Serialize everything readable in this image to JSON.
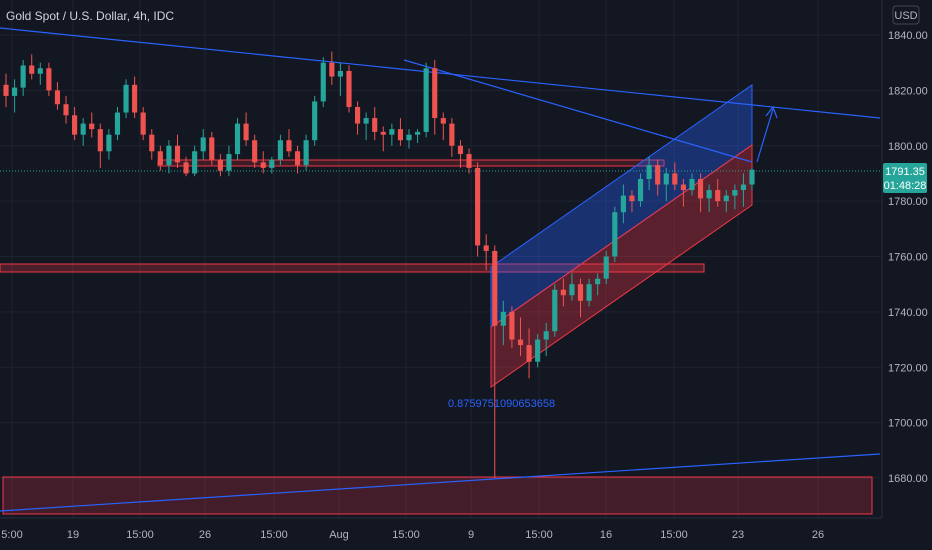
{
  "header": {
    "symbol_title": "Gold Spot / U.S. Dollar, 4h, IDC",
    "currency_button": "USD"
  },
  "colors": {
    "background": "#131722",
    "grid": "#1f2330",
    "up": "#26a69a",
    "down": "#ef5350",
    "trendline": "#2962ff",
    "channel_upper_fill": "#1e3a8a",
    "channel_lower_fill": "#7f2530",
    "zone_red": "#f23645",
    "current_price_bg": "#26a69a"
  },
  "price_axis": {
    "labels": [
      "1840.00",
      "1820.00",
      "1800.00",
      "1780.00",
      "1760.00",
      "1740.00",
      "1720.00",
      "1700.00",
      "1680.00"
    ],
    "current_price": "1791.35",
    "countdown": "01:48:28"
  },
  "time_axis": {
    "labels": [
      "5:00",
      "19",
      "15:00",
      "26",
      "15:00",
      "Aug",
      "15:00",
      "9",
      "15:00",
      "16",
      "15:00",
      "23",
      "26"
    ]
  },
  "annotations": {
    "fib_value": "0.8759751090653658"
  },
  "chart_data": {
    "type": "candlestick",
    "title": "Gold Spot / U.S. Dollar, 4h, IDC",
    "ylim": [
      1664,
      1845
    ],
    "current_price": 1791.35,
    "candles": [
      [
        1822,
        1826,
        1814,
        1818
      ],
      [
        1818,
        1824,
        1812,
        1821
      ],
      [
        1821,
        1831,
        1818,
        1829
      ],
      [
        1829,
        1833,
        1824,
        1826
      ],
      [
        1826,
        1830,
        1822,
        1828
      ],
      [
        1828,
        1830,
        1818,
        1820
      ],
      [
        1820,
        1823,
        1813,
        1815
      ],
      [
        1815,
        1818,
        1808,
        1811
      ],
      [
        1811,
        1814,
        1802,
        1804
      ],
      [
        1804,
        1810,
        1800,
        1808
      ],
      [
        1808,
        1812,
        1803,
        1806
      ],
      [
        1806,
        1808,
        1792,
        1798
      ],
      [
        1798,
        1806,
        1795,
        1804
      ],
      [
        1804,
        1814,
        1802,
        1812
      ],
      [
        1812,
        1824,
        1810,
        1822
      ],
      [
        1822,
        1825,
        1810,
        1812
      ],
      [
        1812,
        1814,
        1802,
        1804
      ],
      [
        1804,
        1806,
        1795,
        1798
      ],
      [
        1798,
        1800,
        1791,
        1793
      ],
      [
        1793,
        1802,
        1790,
        1800
      ],
      [
        1800,
        1804,
        1792,
        1794
      ],
      [
        1794,
        1796,
        1789,
        1790
      ],
      [
        1790,
        1800,
        1789,
        1798
      ],
      [
        1798,
        1806,
        1795,
        1803
      ],
      [
        1803,
        1805,
        1793,
        1795
      ],
      [
        1795,
        1797,
        1789,
        1791
      ],
      [
        1791,
        1800,
        1789,
        1797
      ],
      [
        1797,
        1810,
        1795,
        1808
      ],
      [
        1808,
        1812,
        1800,
        1802
      ],
      [
        1802,
        1804,
        1792,
        1794
      ],
      [
        1794,
        1798,
        1790,
        1792
      ],
      [
        1792,
        1796,
        1790,
        1795
      ],
      [
        1795,
        1804,
        1793,
        1802
      ],
      [
        1802,
        1806,
        1796,
        1798
      ],
      [
        1798,
        1800,
        1790,
        1793
      ],
      [
        1793,
        1804,
        1791,
        1802
      ],
      [
        1802,
        1818,
        1800,
        1816
      ],
      [
        1816,
        1832,
        1814,
        1830
      ],
      [
        1830,
        1834,
        1822,
        1825
      ],
      [
        1825,
        1830,
        1818,
        1827
      ],
      [
        1827,
        1829,
        1812,
        1814
      ],
      [
        1814,
        1816,
        1804,
        1808
      ],
      [
        1808,
        1812,
        1802,
        1810
      ],
      [
        1810,
        1814,
        1802,
        1805
      ],
      [
        1805,
        1807,
        1798,
        1804
      ],
      [
        1804,
        1808,
        1800,
        1806
      ],
      [
        1806,
        1810,
        1800,
        1802
      ],
      [
        1802,
        1806,
        1799,
        1804
      ],
      [
        1804,
        1806,
        1801,
        1805
      ],
      [
        1805,
        1830,
        1803,
        1828
      ],
      [
        1828,
        1831,
        1804,
        1810
      ],
      [
        1810,
        1812,
        1802,
        1808
      ],
      [
        1808,
        1810,
        1796,
        1800
      ],
      [
        1800,
        1802,
        1792,
        1797
      ],
      [
        1797,
        1799,
        1790,
        1792
      ],
      [
        1792,
        1794,
        1760,
        1764
      ],
      [
        1764,
        1768,
        1755,
        1762
      ],
      [
        1762,
        1764,
        1680,
        1735
      ],
      [
        1735,
        1744,
        1728,
        1740
      ],
      [
        1740,
        1742,
        1727,
        1730
      ],
      [
        1730,
        1738,
        1724,
        1728
      ],
      [
        1728,
        1734,
        1716,
        1722
      ],
      [
        1722,
        1732,
        1720,
        1730
      ],
      [
        1730,
        1736,
        1724,
        1733
      ],
      [
        1733,
        1750,
        1731,
        1748
      ],
      [
        1748,
        1752,
        1742,
        1746
      ],
      [
        1746,
        1754,
        1744,
        1750
      ],
      [
        1750,
        1752,
        1738,
        1744
      ],
      [
        1744,
        1752,
        1742,
        1750
      ],
      [
        1750,
        1754,
        1746,
        1752
      ],
      [
        1752,
        1762,
        1750,
        1760
      ],
      [
        1760,
        1778,
        1758,
        1776
      ],
      [
        1776,
        1786,
        1772,
        1782
      ],
      [
        1782,
        1784,
        1776,
        1780
      ],
      [
        1780,
        1790,
        1778,
        1788
      ],
      [
        1788,
        1796,
        1784,
        1793
      ],
      [
        1793,
        1795,
        1782,
        1786
      ],
      [
        1786,
        1792,
        1780,
        1790
      ],
      [
        1790,
        1794,
        1784,
        1786
      ],
      [
        1786,
        1788,
        1778,
        1784
      ],
      [
        1784,
        1790,
        1782,
        1788
      ],
      [
        1788,
        1790,
        1776,
        1781
      ],
      [
        1781,
        1786,
        1776,
        1784
      ],
      [
        1784,
        1788,
        1778,
        1780
      ],
      [
        1780,
        1784,
        1776,
        1782
      ],
      [
        1782,
        1786,
        1777,
        1784
      ],
      [
        1784,
        1790,
        1778,
        1786
      ],
      [
        1786,
        1792,
        1784,
        1791.35
      ]
    ],
    "channel": {
      "upper_top": [
        [
          1757,
          "Aug 9"
        ],
        [
          1822,
          "Aug 23"
        ]
      ],
      "mid": [
        [
          1737,
          "Aug 9"
        ],
        [
          1801,
          "Aug 23"
        ]
      ],
      "lower": [
        [
          1714,
          "Aug 9"
        ],
        [
          1777,
          "Aug 23"
        ]
      ]
    },
    "zones": [
      {
        "from": 1794,
        "to": 1792
      },
      {
        "from": 1758,
        "to": 1755
      },
      {
        "from": 1682,
        "to": 1667
      }
    ],
    "fib_level": 0.8759751090653658
  }
}
